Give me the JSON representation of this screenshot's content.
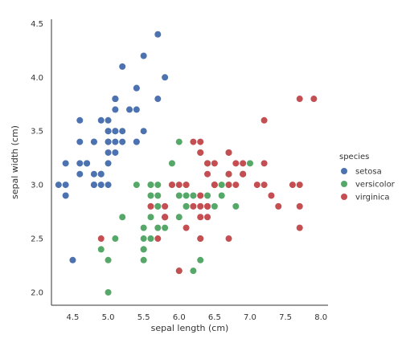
{
  "chart_data": {
    "type": "scatter",
    "title": "",
    "xlabel": "sepal length (cm)",
    "ylabel": "sepal width (cm)",
    "xlim": [
      4.2,
      8.1
    ],
    "ylim": [
      1.88,
      4.54
    ],
    "xticks": [
      "4.5",
      "5.0",
      "5.5",
      "6.0",
      "6.5",
      "7.0",
      "7.5",
      "8.0"
    ],
    "yticks": [
      "2.0",
      "2.5",
      "3.0",
      "3.5",
      "4.0",
      "4.5"
    ],
    "grid": false,
    "legend": {
      "title": "species",
      "placement": "right"
    },
    "series": [
      {
        "name": "setosa",
        "color": "#4c72b0",
        "points": [
          [
            5.1,
            3.5
          ],
          [
            4.9,
            3.0
          ],
          [
            4.7,
            3.2
          ],
          [
            4.6,
            3.1
          ],
          [
            5.0,
            3.6
          ],
          [
            5.4,
            3.9
          ],
          [
            4.6,
            3.4
          ],
          [
            5.0,
            3.4
          ],
          [
            4.4,
            2.9
          ],
          [
            4.9,
            3.1
          ],
          [
            5.4,
            3.7
          ],
          [
            4.8,
            3.4
          ],
          [
            4.8,
            3.0
          ],
          [
            4.3,
            3.0
          ],
          [
            5.8,
            4.0
          ],
          [
            5.7,
            4.4
          ],
          [
            5.4,
            3.9
          ],
          [
            5.1,
            3.5
          ],
          [
            5.7,
            3.8
          ],
          [
            5.1,
            3.8
          ],
          [
            5.4,
            3.4
          ],
          [
            5.1,
            3.7
          ],
          [
            4.6,
            3.6
          ],
          [
            5.1,
            3.3
          ],
          [
            4.8,
            3.4
          ],
          [
            5.0,
            3.0
          ],
          [
            5.0,
            3.4
          ],
          [
            5.2,
            3.5
          ],
          [
            5.2,
            3.4
          ],
          [
            4.7,
            3.2
          ],
          [
            4.8,
            3.1
          ],
          [
            5.4,
            3.4
          ],
          [
            5.2,
            4.1
          ],
          [
            5.5,
            4.2
          ],
          [
            4.9,
            3.1
          ],
          [
            5.0,
            3.2
          ],
          [
            5.5,
            3.5
          ],
          [
            4.9,
            3.6
          ],
          [
            4.4,
            3.0
          ],
          [
            5.1,
            3.4
          ],
          [
            5.0,
            3.5
          ],
          [
            4.5,
            2.3
          ],
          [
            4.4,
            3.2
          ],
          [
            5.0,
            3.5
          ],
          [
            5.1,
            3.8
          ],
          [
            4.8,
            3.0
          ],
          [
            5.1,
            3.8
          ],
          [
            4.6,
            3.2
          ],
          [
            5.3,
            3.7
          ],
          [
            5.0,
            3.3
          ]
        ]
      },
      {
        "name": "versicolor",
        "color": "#55a868",
        "points": [
          [
            7.0,
            3.2
          ],
          [
            6.4,
            3.2
          ],
          [
            6.9,
            3.1
          ],
          [
            5.5,
            2.3
          ],
          [
            6.5,
            2.8
          ],
          [
            5.7,
            2.8
          ],
          [
            6.3,
            3.3
          ],
          [
            4.9,
            2.4
          ],
          [
            6.6,
            2.9
          ],
          [
            5.2,
            2.7
          ],
          [
            5.0,
            2.0
          ],
          [
            5.9,
            3.0
          ],
          [
            6.0,
            2.2
          ],
          [
            6.1,
            2.9
          ],
          [
            5.6,
            2.9
          ],
          [
            6.7,
            3.1
          ],
          [
            5.6,
            3.0
          ],
          [
            5.8,
            2.7
          ],
          [
            6.2,
            2.2
          ],
          [
            5.6,
            2.5
          ],
          [
            5.9,
            3.2
          ],
          [
            6.1,
            2.8
          ],
          [
            6.3,
            2.5
          ],
          [
            6.1,
            2.8
          ],
          [
            6.4,
            2.9
          ],
          [
            6.6,
            3.0
          ],
          [
            6.8,
            2.8
          ],
          [
            6.7,
            3.0
          ],
          [
            6.0,
            2.9
          ],
          [
            5.7,
            2.6
          ],
          [
            5.5,
            2.4
          ],
          [
            5.5,
            2.4
          ],
          [
            5.8,
            2.7
          ],
          [
            6.0,
            2.7
          ],
          [
            5.4,
            3.0
          ],
          [
            6.0,
            3.4
          ],
          [
            6.7,
            3.1
          ],
          [
            6.3,
            2.3
          ],
          [
            5.6,
            3.0
          ],
          [
            5.5,
            2.5
          ],
          [
            5.5,
            2.6
          ],
          [
            6.1,
            3.0
          ],
          [
            5.8,
            2.6
          ],
          [
            5.0,
            2.3
          ],
          [
            5.6,
            2.7
          ],
          [
            5.7,
            3.0
          ],
          [
            5.7,
            2.9
          ],
          [
            6.2,
            2.9
          ],
          [
            5.1,
            2.5
          ],
          [
            5.7,
            2.8
          ]
        ]
      },
      {
        "name": "virginica",
        "color": "#c44e52",
        "points": [
          [
            6.3,
            3.3
          ],
          [
            5.8,
            2.7
          ],
          [
            7.1,
            3.0
          ],
          [
            6.3,
            2.9
          ],
          [
            6.5,
            3.0
          ],
          [
            7.6,
            3.0
          ],
          [
            4.9,
            2.5
          ],
          [
            7.3,
            2.9
          ],
          [
            6.7,
            2.5
          ],
          [
            7.2,
            3.6
          ],
          [
            6.5,
            3.2
          ],
          [
            6.4,
            2.7
          ],
          [
            6.8,
            3.0
          ],
          [
            5.7,
            2.5
          ],
          [
            5.8,
            2.8
          ],
          [
            6.4,
            3.2
          ],
          [
            6.5,
            3.0
          ],
          [
            7.7,
            3.8
          ],
          [
            7.7,
            2.6
          ],
          [
            6.0,
            2.2
          ],
          [
            6.9,
            3.2
          ],
          [
            5.6,
            2.8
          ],
          [
            7.7,
            2.8
          ],
          [
            6.3,
            2.7
          ],
          [
            6.7,
            3.3
          ],
          [
            7.2,
            3.2
          ],
          [
            6.2,
            2.8
          ],
          [
            6.1,
            3.0
          ],
          [
            6.4,
            2.8
          ],
          [
            7.2,
            3.0
          ],
          [
            7.4,
            2.8
          ],
          [
            7.9,
            3.8
          ],
          [
            6.4,
            2.8
          ],
          [
            6.3,
            2.8
          ],
          [
            6.1,
            2.6
          ],
          [
            7.7,
            3.0
          ],
          [
            6.3,
            3.4
          ],
          [
            6.4,
            3.1
          ],
          [
            6.0,
            3.0
          ],
          [
            6.9,
            3.1
          ],
          [
            6.7,
            3.1
          ],
          [
            6.9,
            3.1
          ],
          [
            5.8,
            2.7
          ],
          [
            6.8,
            3.2
          ],
          [
            6.7,
            3.3
          ],
          [
            6.7,
            3.0
          ],
          [
            6.3,
            2.5
          ],
          [
            6.5,
            3.0
          ],
          [
            6.2,
            3.4
          ],
          [
            5.9,
            3.0
          ]
        ]
      }
    ]
  }
}
